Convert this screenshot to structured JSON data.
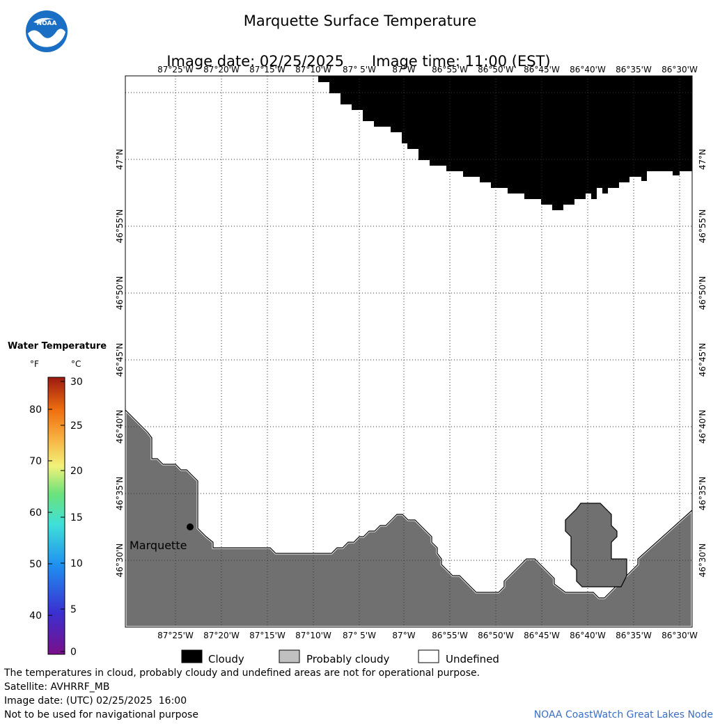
{
  "header": {
    "title": "Marquette Surface Temperature",
    "image_date_label": "Image date: 02/25/2025",
    "image_time_label": "Image time: 11:00 (EST)",
    "logo_text": "NOAA"
  },
  "map": {
    "lon_labels": [
      "87°25'W",
      "87°20'W",
      "87°15'W",
      "87°10'W",
      "87° 5'W",
      "87°W",
      "86°55'W",
      "86°50'W",
      "86°45'W",
      "86°40'W",
      "86°35'W",
      "86°30'W"
    ],
    "lat_labels": [
      "47°N",
      "46°55'N",
      "46°50'N",
      "46°45'N",
      "46°40'N",
      "46°35'N",
      "46°30'N"
    ],
    "city_label": "Marquette",
    "colors": {
      "cloudy": "#000000",
      "land": "#707070",
      "water_undefined": "#ffffff",
      "grid": "#333333"
    }
  },
  "legend": {
    "title": "Water Temperature",
    "unit_f": "°F",
    "unit_c": "°C",
    "f_ticks": [
      "80",
      "70",
      "60",
      "50",
      "40"
    ],
    "c_ticks": [
      "30",
      "25",
      "20",
      "15",
      "10",
      "5",
      "0"
    ]
  },
  "key": {
    "cloudy": "Cloudy",
    "probably_cloudy": "Probably cloudy",
    "undefined": "Undefined",
    "cloudy_color": "#000000",
    "probably_cloudy_color": "#c0c0c0",
    "undefined_color": "#ffffff"
  },
  "footer": {
    "line1": "The temperatures in cloud, probably cloudy and undefined areas are not for operational purpose.",
    "line2": "Satellite: AVHRRF_MB",
    "line3": "Image date: (UTC) 02/25/2025  16:00",
    "line4": "Not to be used for navigational purpose",
    "credit": "NOAA CoastWatch Great Lakes Node"
  }
}
